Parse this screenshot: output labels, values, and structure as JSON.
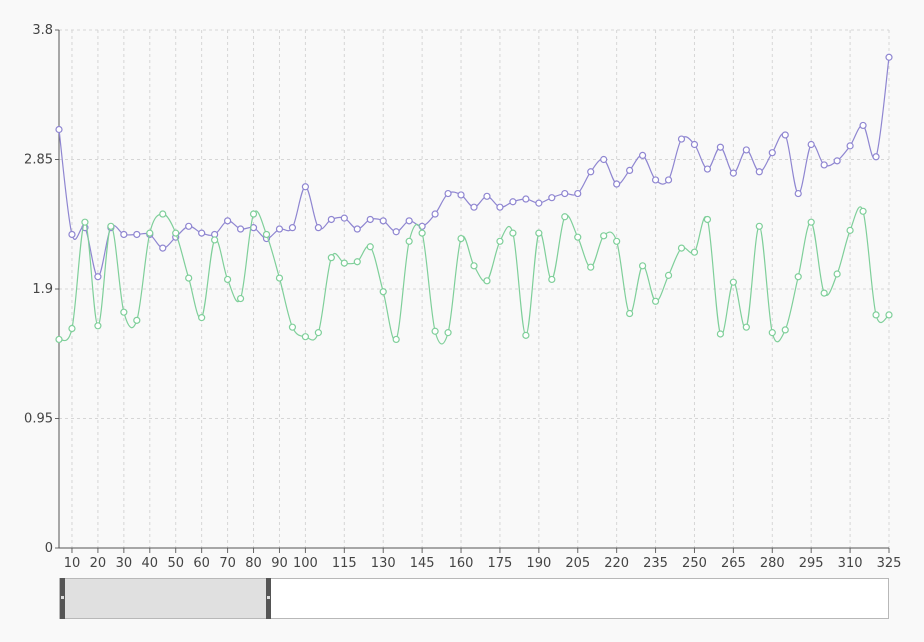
{
  "chart_data": {
    "type": "line",
    "title": "",
    "xlabel": "",
    "ylabel": "",
    "x": [
      5,
      10,
      15,
      20,
      25,
      30,
      35,
      40,
      45,
      50,
      55,
      60,
      65,
      70,
      75,
      80,
      85,
      90,
      95,
      100,
      105,
      110,
      115,
      120,
      125,
      130,
      135,
      140,
      145,
      150,
      155,
      160,
      165,
      170,
      175,
      180,
      185,
      190,
      195,
      200,
      205,
      210,
      215,
      220,
      225,
      230,
      235,
      240,
      245,
      250,
      255,
      260,
      265,
      270,
      275,
      280,
      285,
      290,
      295,
      300,
      305,
      310,
      315,
      320,
      325
    ],
    "x_tick_labels": [
      "10",
      "20",
      "30",
      "40",
      "50",
      "60",
      "70",
      "80",
      "90",
      "100",
      "115",
      "130",
      "145",
      "160",
      "175",
      "190",
      "205",
      "220",
      "235",
      "250",
      "265",
      "280",
      "295",
      "310",
      "325"
    ],
    "y_ticks": [
      0,
      0.95,
      1.9,
      2.85,
      3.8
    ],
    "y_tick_labels": [
      "0",
      "0.95",
      "1.9",
      "2.85",
      "3.8"
    ],
    "ylim": [
      0,
      3.8
    ],
    "xlim": [
      5,
      325
    ],
    "grid": true,
    "smooth": true,
    "series": [
      {
        "color": "#8f86d1",
        "values": [
          3.07,
          2.3,
          2.35,
          1.99,
          2.35,
          2.3,
          2.3,
          2.3,
          2.2,
          2.28,
          2.36,
          2.31,
          2.3,
          2.4,
          2.34,
          2.35,
          2.27,
          2.34,
          2.35,
          2.65,
          2.35,
          2.41,
          2.42,
          2.34,
          2.41,
          2.4,
          2.32,
          2.4,
          2.36,
          2.45,
          2.6,
          2.59,
          2.5,
          2.58,
          2.5,
          2.54,
          2.56,
          2.53,
          2.57,
          2.6,
          2.6,
          2.76,
          2.85,
          2.67,
          2.77,
          2.88,
          2.7,
          2.7,
          3.0,
          2.96,
          2.78,
          2.94,
          2.75,
          2.92,
          2.76,
          2.9,
          3.03,
          2.6,
          2.96,
          2.81,
          2.84,
          2.95,
          3.1,
          2.87,
          3.6
        ]
      },
      {
        "color": "#7fcf9a",
        "values": [
          1.53,
          1.61,
          2.39,
          1.63,
          2.36,
          1.73,
          1.67,
          2.31,
          2.45,
          2.31,
          1.98,
          1.69,
          2.26,
          1.97,
          1.83,
          2.45,
          2.3,
          1.98,
          1.62,
          1.55,
          1.58,
          2.13,
          2.09,
          2.1,
          2.21,
          1.88,
          1.53,
          2.25,
          2.31,
          1.59,
          1.58,
          2.27,
          2.07,
          1.96,
          2.25,
          2.31,
          1.56,
          2.31,
          1.97,
          2.43,
          2.28,
          2.06,
          2.29,
          2.25,
          1.72,
          2.07,
          1.81,
          2.0,
          2.2,
          2.17,
          2.41,
          1.57,
          1.95,
          1.62,
          2.36,
          1.58,
          1.6,
          1.99,
          2.39,
          1.87,
          2.01,
          2.33,
          2.47,
          1.71,
          1.71
        ]
      }
    ]
  },
  "scrollbar": {
    "visible_range_fraction": [
      0,
      0.255
    ]
  }
}
